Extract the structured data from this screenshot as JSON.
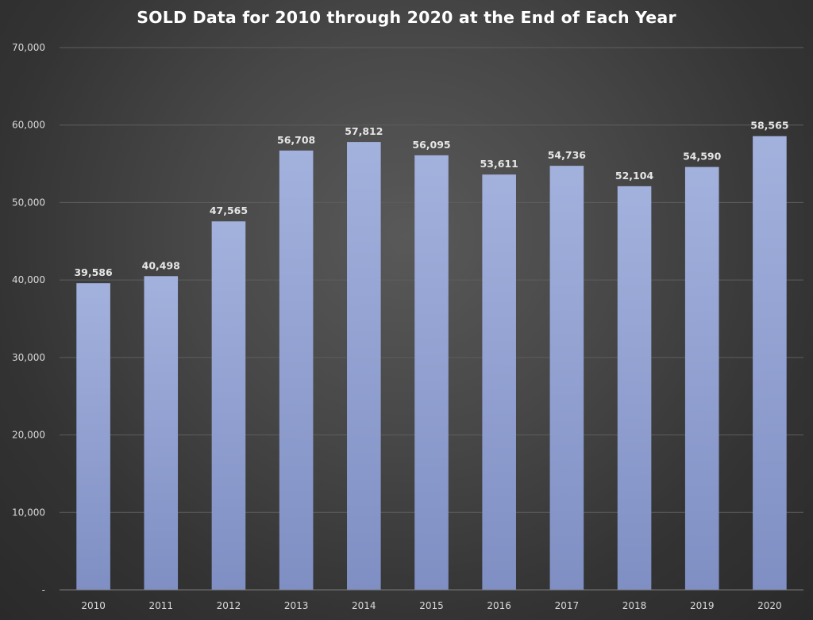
{
  "chart_data": {
    "type": "bar",
    "title": "SOLD Data for 2010 through 2020 at the End of Each Year",
    "categories": [
      "2010",
      "2011",
      "2012",
      "2013",
      "2014",
      "2015",
      "2016",
      "2017",
      "2018",
      "2019",
      "2020"
    ],
    "values": [
      39586,
      40498,
      47565,
      56708,
      57812,
      56095,
      53611,
      54736,
      52104,
      54590,
      58565
    ],
    "data_labels": [
      "39,586",
      "40,498",
      "47,565",
      "56,708",
      "57,812",
      "56,095",
      "53,611",
      "54,736",
      "52,104",
      "54,590",
      "58,565"
    ],
    "y_ticks": [
      0,
      10000,
      20000,
      30000,
      40000,
      50000,
      60000,
      70000
    ],
    "y_tick_labels": [
      "-",
      "10,000",
      "20,000",
      "30,000",
      "40,000",
      "50,000",
      "60,000",
      "70,000"
    ],
    "ylim": [
      0,
      70000
    ],
    "xlabel": "",
    "ylabel": "",
    "grid": true,
    "legend": "none",
    "colors": {
      "bar_top": "#a3b1dd",
      "bar_bottom": "#7f8fc3",
      "background": "#444444"
    }
  }
}
